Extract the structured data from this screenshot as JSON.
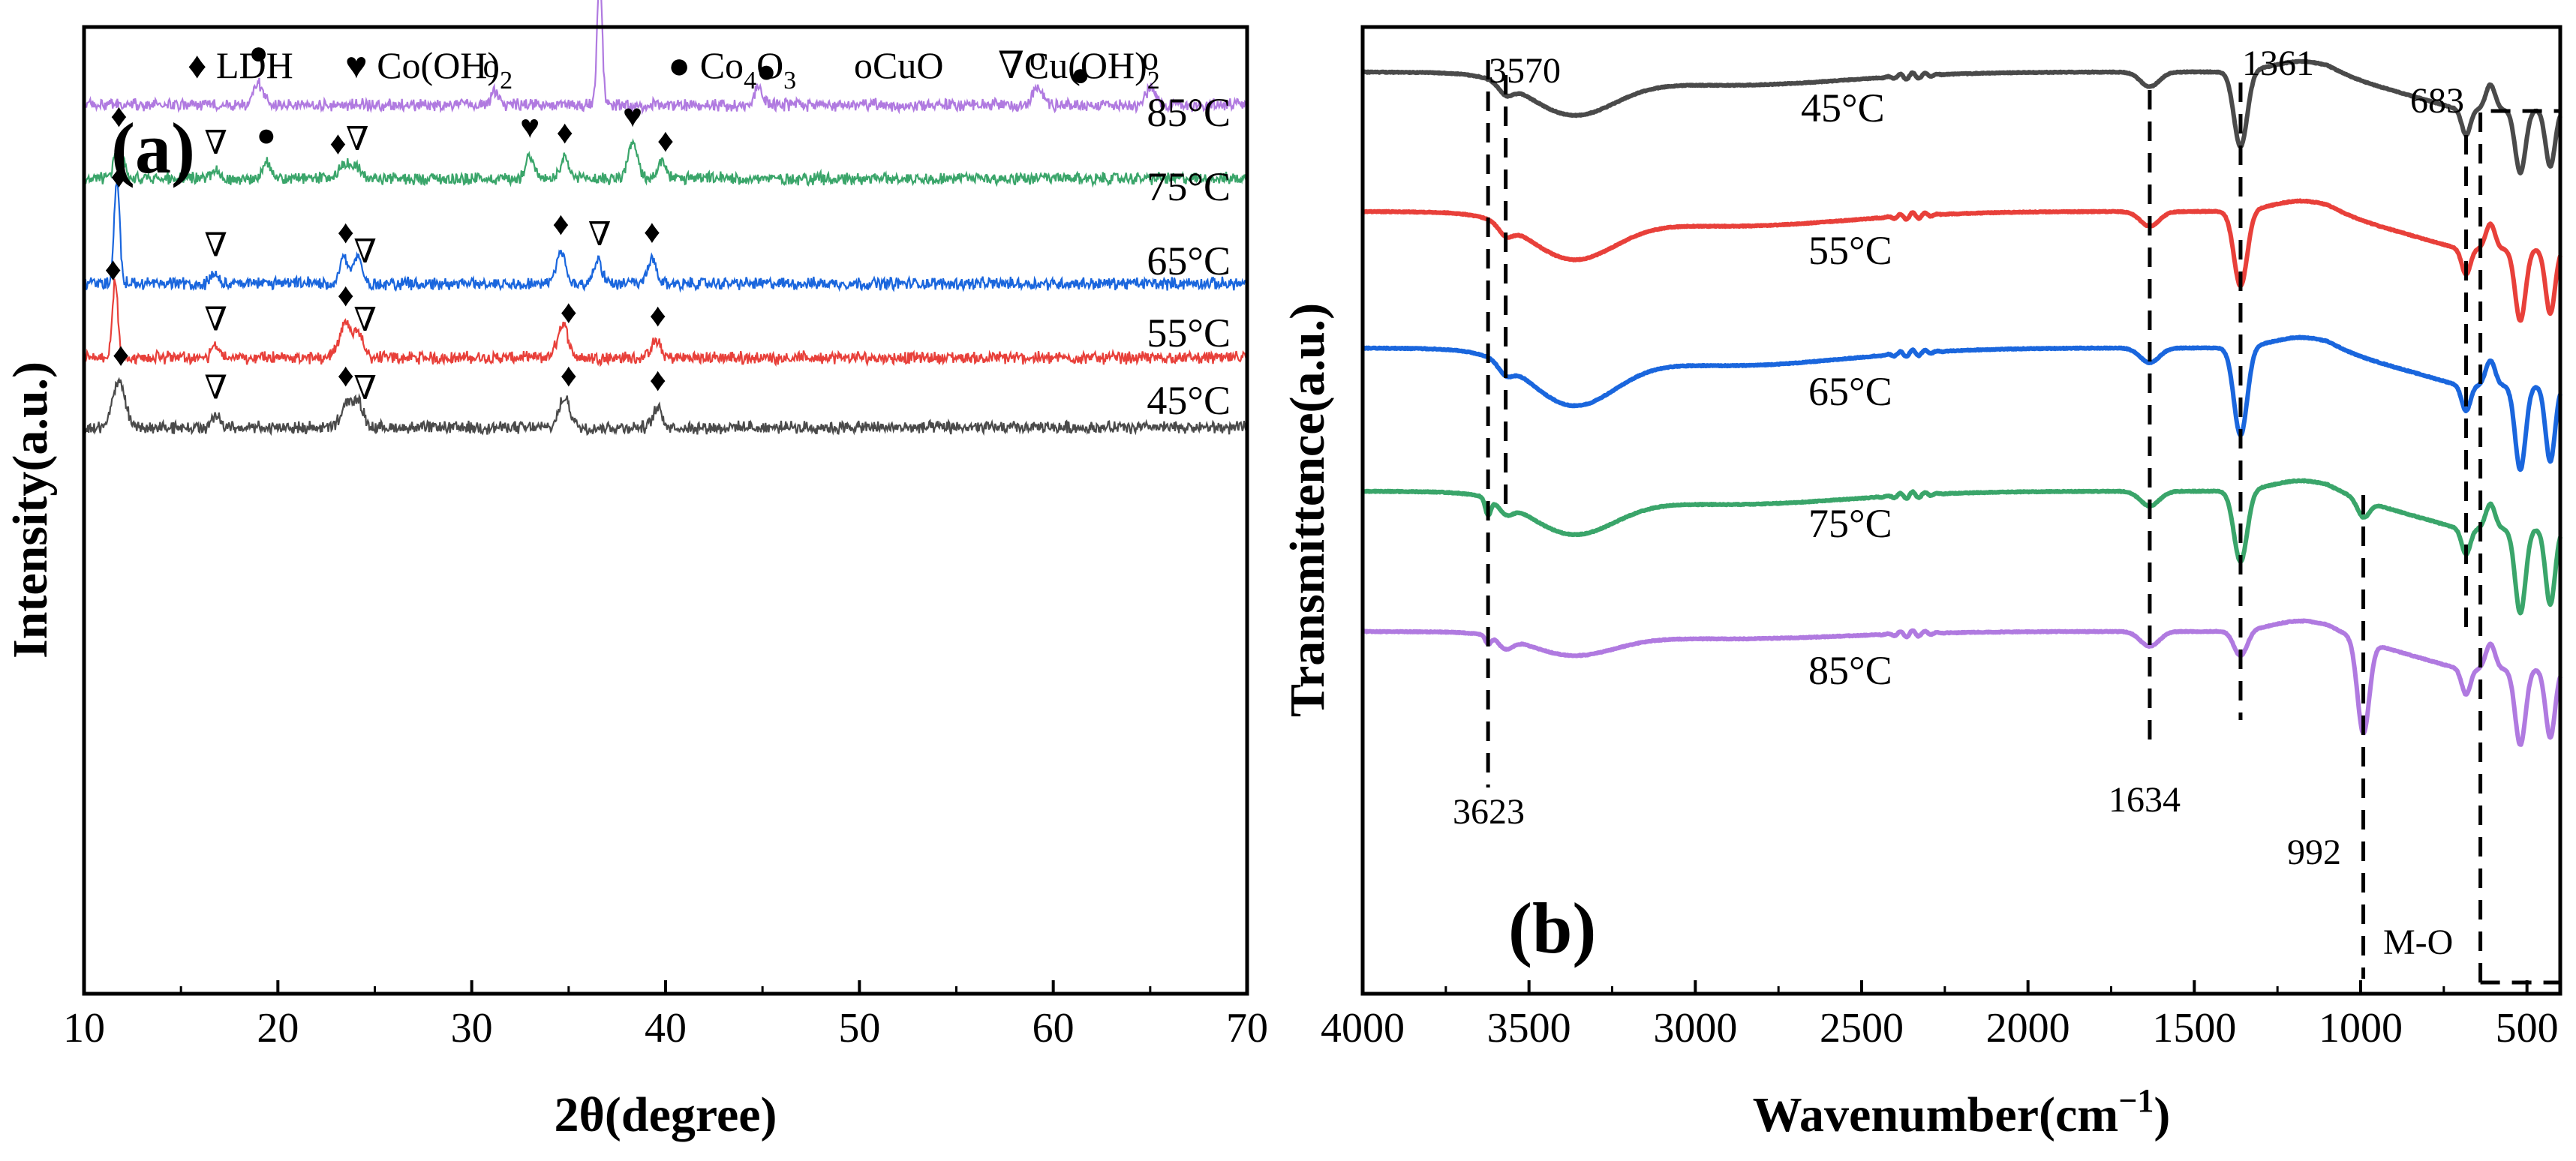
{
  "chart_data": [
    {
      "panel": "(a)",
      "type": "line",
      "xlabel": "2θ(degree)",
      "ylabel": "Intensity(a.u.)",
      "xlim": [
        10,
        70
      ],
      "xticks": [
        10,
        20,
        30,
        40,
        50,
        60,
        70
      ],
      "grid": false,
      "legend": [
        {
          "marker": "♦",
          "label": "LDH"
        },
        {
          "marker": "♥",
          "label": "Co(OH)",
          "sub": "2"
        },
        {
          "marker": "●",
          "label": "Co",
          "sub": "4",
          "rest": "O",
          "sub2": "3"
        },
        {
          "marker": "o",
          "label": "CuO"
        },
        {
          "marker": "∇",
          "label": "Cu(OH)",
          "sub": "2"
        }
      ],
      "series": [
        {
          "name": "85°C",
          "color": "#b07ae0",
          "baseline_level": 0.0,
          "noise": 0.18,
          "peaks": [
            {
              "x": 19.0,
              "h": 0.8,
              "w": 0.35
            },
            {
              "x": 31.2,
              "h": 0.5,
              "w": 0.3
            },
            {
              "x": 36.6,
              "h": 4.9,
              "w": 0.18
            },
            {
              "x": 44.8,
              "h": 0.7,
              "w": 0.3
            },
            {
              "x": 59.2,
              "h": 0.6,
              "w": 0.4
            },
            {
              "x": 65.0,
              "h": 0.6,
              "w": 0.4
            }
          ],
          "markers": [
            {
              "x": 19.0,
              "symbol": "●"
            },
            {
              "x": 31.0,
              "symbol": "o"
            },
            {
              "x": 36.6,
              "symbol": "●"
            },
            {
              "x": 45.2,
              "symbol": "●"
            },
            {
              "x": 59.2,
              "symbol": "o"
            },
            {
              "x": 61.4,
              "symbol": "●"
            },
            {
              "x": 65.0,
              "symbol": "o"
            }
          ]
        },
        {
          "name": "75°C",
          "color": "#3aa56a",
          "baseline_level": 0.0,
          "noise": 0.18,
          "peaks": [
            {
              "x": 11.8,
              "h": 1.3,
              "w": 0.3
            },
            {
              "x": 16.8,
              "h": 0.3,
              "w": 0.3
            },
            {
              "x": 19.4,
              "h": 0.6,
              "w": 0.3
            },
            {
              "x": 23.4,
              "h": 0.6,
              "w": 0.35
            },
            {
              "x": 24.0,
              "h": 0.5,
              "w": 0.3
            },
            {
              "x": 33.0,
              "h": 0.9,
              "w": 0.3
            },
            {
              "x": 34.8,
              "h": 0.7,
              "w": 0.3
            },
            {
              "x": 38.3,
              "h": 1.3,
              "w": 0.35
            },
            {
              "x": 39.8,
              "h": 0.6,
              "w": 0.3
            }
          ],
          "markers": [
            {
              "x": 11.8,
              "symbol": "♦"
            },
            {
              "x": 16.8,
              "symbol": "∇"
            },
            {
              "x": 19.4,
              "symbol": "●"
            },
            {
              "x": 23.1,
              "symbol": "♦"
            },
            {
              "x": 24.1,
              "symbol": "∇"
            },
            {
              "x": 33.0,
              "symbol": "♥"
            },
            {
              "x": 34.8,
              "symbol": "♦"
            },
            {
              "x": 38.3,
              "symbol": "♥"
            },
            {
              "x": 40.0,
              "symbol": "♦"
            }
          ]
        },
        {
          "name": "65°C",
          "color": "#1a66dd",
          "baseline_level": 0.0,
          "noise": 0.18,
          "peaks": [
            {
              "x": 11.7,
              "h": 3.8,
              "w": 0.2
            },
            {
              "x": 16.8,
              "h": 0.4,
              "w": 0.3
            },
            {
              "x": 23.4,
              "h": 1.0,
              "w": 0.3
            },
            {
              "x": 24.1,
              "h": 1.0,
              "w": 0.3
            },
            {
              "x": 34.6,
              "h": 1.2,
              "w": 0.3
            },
            {
              "x": 36.5,
              "h": 0.9,
              "w": 0.3
            },
            {
              "x": 39.3,
              "h": 0.9,
              "w": 0.3
            }
          ],
          "markers": [
            {
              "x": 11.8,
              "symbol": "♦"
            },
            {
              "x": 16.8,
              "symbol": "∇"
            },
            {
              "x": 23.5,
              "symbol": "♦"
            },
            {
              "x": 24.5,
              "symbol": "∇"
            },
            {
              "x": 34.6,
              "symbol": "♦"
            },
            {
              "x": 36.6,
              "symbol": "∇"
            },
            {
              "x": 39.3,
              "symbol": "♦"
            }
          ]
        },
        {
          "name": "55°C",
          "color": "#e8403a",
          "baseline_level": 0.0,
          "noise": 0.18,
          "peaks": [
            {
              "x": 11.6,
              "h": 2.9,
              "w": 0.2
            },
            {
              "x": 16.8,
              "h": 0.4,
              "w": 0.3
            },
            {
              "x": 23.5,
              "h": 1.3,
              "w": 0.45
            },
            {
              "x": 24.2,
              "h": 0.8,
              "w": 0.35
            },
            {
              "x": 34.7,
              "h": 1.2,
              "w": 0.4
            },
            {
              "x": 39.5,
              "h": 0.6,
              "w": 0.35
            }
          ],
          "markers": [
            {
              "x": 11.5,
              "symbol": "♦"
            },
            {
              "x": 16.8,
              "symbol": "∇"
            },
            {
              "x": 23.5,
              "symbol": "♦"
            },
            {
              "x": 24.5,
              "symbol": "∇"
            },
            {
              "x": 35.0,
              "symbol": "♦"
            },
            {
              "x": 39.6,
              "symbol": "♦"
            }
          ]
        },
        {
          "name": "45°C",
          "color": "#4a4a4a",
          "baseline_level": 0.0,
          "noise": 0.18,
          "peaks": [
            {
              "x": 11.8,
              "h": 1.7,
              "w": 0.45
            },
            {
              "x": 16.8,
              "h": 0.4,
              "w": 0.3
            },
            {
              "x": 23.6,
              "h": 0.9,
              "w": 0.45
            },
            {
              "x": 24.2,
              "h": 0.8,
              "w": 0.35
            },
            {
              "x": 34.8,
              "h": 1.1,
              "w": 0.4
            },
            {
              "x": 39.6,
              "h": 0.7,
              "w": 0.35
            }
          ],
          "markers": [
            {
              "x": 11.9,
              "symbol": "♦"
            },
            {
              "x": 16.8,
              "symbol": "∇"
            },
            {
              "x": 23.5,
              "symbol": "♦"
            },
            {
              "x": 24.5,
              "symbol": "∇"
            },
            {
              "x": 35.0,
              "symbol": "♦"
            },
            {
              "x": 39.6,
              "symbol": "♦"
            }
          ]
        }
      ]
    },
    {
      "panel": "(b)",
      "type": "line",
      "xlabel": "Wavenumber(cm",
      "xlabel_sup": "−1",
      "xlabel_close": ")",
      "ylabel": "Transmittence(a.u.)",
      "xlim": [
        4000,
        400
      ],
      "xticks": [
        4000,
        3500,
        3000,
        2500,
        2000,
        1500,
        1000,
        500
      ],
      "grid": false,
      "reference_lines": [
        {
          "x": 3623,
          "label": "3623"
        },
        {
          "x": 3570,
          "label": "3570"
        },
        {
          "x": 1634,
          "label": "1634"
        },
        {
          "x": 1361,
          "label": "1361"
        },
        {
          "x": 992,
          "label": "992"
        },
        {
          "x": 683,
          "label": "683"
        }
      ],
      "region_label": "M-O",
      "series": [
        {
          "name": "45°C",
          "color": "#4a4a4a",
          "baseline": 0.0,
          "broad_oh": 0.9,
          "carbonate": 1.8,
          "mo": 1.5,
          "band992": 0.0,
          "sharp3623": 0.0
        },
        {
          "name": "55°C",
          "color": "#e8403a",
          "baseline": 1.6,
          "broad_oh": 1.0,
          "carbonate": 1.8,
          "mo": 1.7,
          "band992": 0.0,
          "sharp3623": 0.0
        },
        {
          "name": "65°C",
          "color": "#1a66dd",
          "baseline": 3.2,
          "broad_oh": 1.2,
          "carbonate": 2.1,
          "mo": 2.0,
          "band992": 0.0,
          "sharp3623": 0.0
        },
        {
          "name": "75°C",
          "color": "#3aa56a",
          "baseline": 4.8,
          "broad_oh": 0.9,
          "carbonate": 1.7,
          "mo": 2.0,
          "band992": 0.4,
          "sharp3623": 0.4
        },
        {
          "name": "85°C",
          "color": "#b07ae0",
          "baseline": 6.4,
          "broad_oh": 0.5,
          "carbonate": 0.6,
          "mo": 1.8,
          "band992": 2.2,
          "sharp3623": 0.2
        }
      ]
    }
  ]
}
